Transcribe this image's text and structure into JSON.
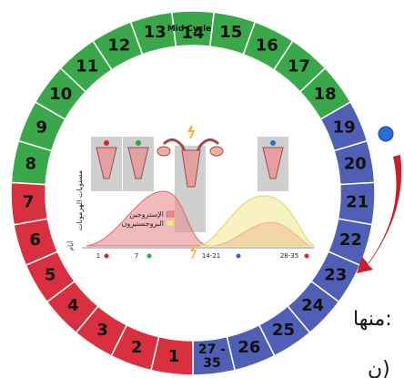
{
  "cycle": {
    "mid_label": "Mid Cycle",
    "segments": [
      {
        "label": "14"
      },
      {
        "label": "15"
      },
      {
        "label": "16"
      },
      {
        "label": "17"
      },
      {
        "label": "18"
      },
      {
        "label": "19"
      },
      {
        "label": "20"
      },
      {
        "label": "21"
      },
      {
        "label": "22"
      },
      {
        "label": "23"
      },
      {
        "label": "24"
      },
      {
        "label": "25"
      },
      {
        "label": "26"
      },
      {
        "label": "27 - 35"
      },
      {
        "label": "1"
      },
      {
        "label": "2"
      },
      {
        "label": "3"
      },
      {
        "label": "4"
      },
      {
        "label": "5"
      },
      {
        "label": "6"
      },
      {
        "label": "7"
      },
      {
        "label": "8"
      },
      {
        "label": "9"
      },
      {
        "label": "10"
      },
      {
        "label": "11"
      },
      {
        "label": "12"
      },
      {
        "label": "13"
      }
    ],
    "colors": {
      "green": "#3aa84a",
      "blue": "#4f5fb5",
      "red": "#d8303f",
      "border": "#ffffff"
    }
  },
  "chart": {
    "y_axis_label": "مستويات الهرمونات",
    "legend": [
      {
        "label": "الإستروجين",
        "color": "#e88d8d"
      },
      {
        "label": "البروجستيرون",
        "color": "#f3e89a"
      }
    ],
    "x_ticks": [
      "1",
      "7",
      "14-21",
      "28-35"
    ],
    "x_unit": "أيام"
  },
  "side": {
    "text_1": "منها:",
    "text_2": "ن)"
  }
}
